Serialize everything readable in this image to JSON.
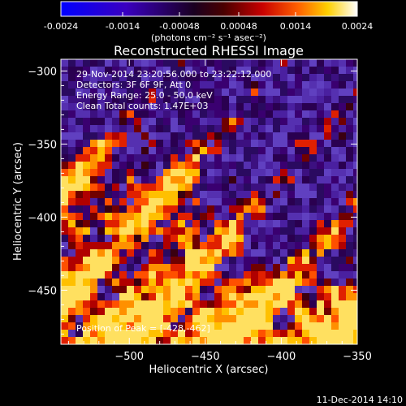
{
  "chart_data": {
    "type": "heatmap",
    "title": "Reconstructed RHESSI Image",
    "xlabel": "Heliocentric X (arcsec)",
    "ylabel": "Heliocentric Y (arcsec)",
    "xlim": [
      -545,
      -350
    ],
    "ylim": [
      -487,
      -292
    ],
    "x_ticks": [
      -500,
      -450,
      -400,
      -350
    ],
    "y_ticks": [
      -300,
      -350,
      -400,
      -450
    ],
    "colorbar": {
      "min": -0.0024,
      "max": 0.0024,
      "tick_values": [
        -0.0024,
        -0.0014,
        -0.00048,
        0.00048,
        0.0014,
        0.0024
      ],
      "tick_labels": [
        "-0.0024",
        "-0.0014",
        "-0.00048",
        "0.00048",
        "0.0014",
        "0.0024"
      ],
      "units": "(photons cm⁻² s⁻¹ asec⁻²)"
    },
    "annotations": [
      "29-Nov-2014 23:20:56.000 to 23:22:12.000",
      "Detectors: 3F 6F 9F, Att 0",
      "Energy Range: 25.0 - 50.0 keV",
      "Clean     Total counts: 1.47E+03"
    ],
    "peak_label": "Position of Peak = [-428,-462]",
    "peak": [
      -428,
      -462
    ],
    "colors": {
      "background": "#000000",
      "text": "#ffffff",
      "colormap_low": "#0000ff",
      "colormap_mid": "#300050",
      "colormap_high": "#ffffff"
    }
  },
  "footer": {
    "timestamp": "11-Dec-2014 14:10"
  }
}
